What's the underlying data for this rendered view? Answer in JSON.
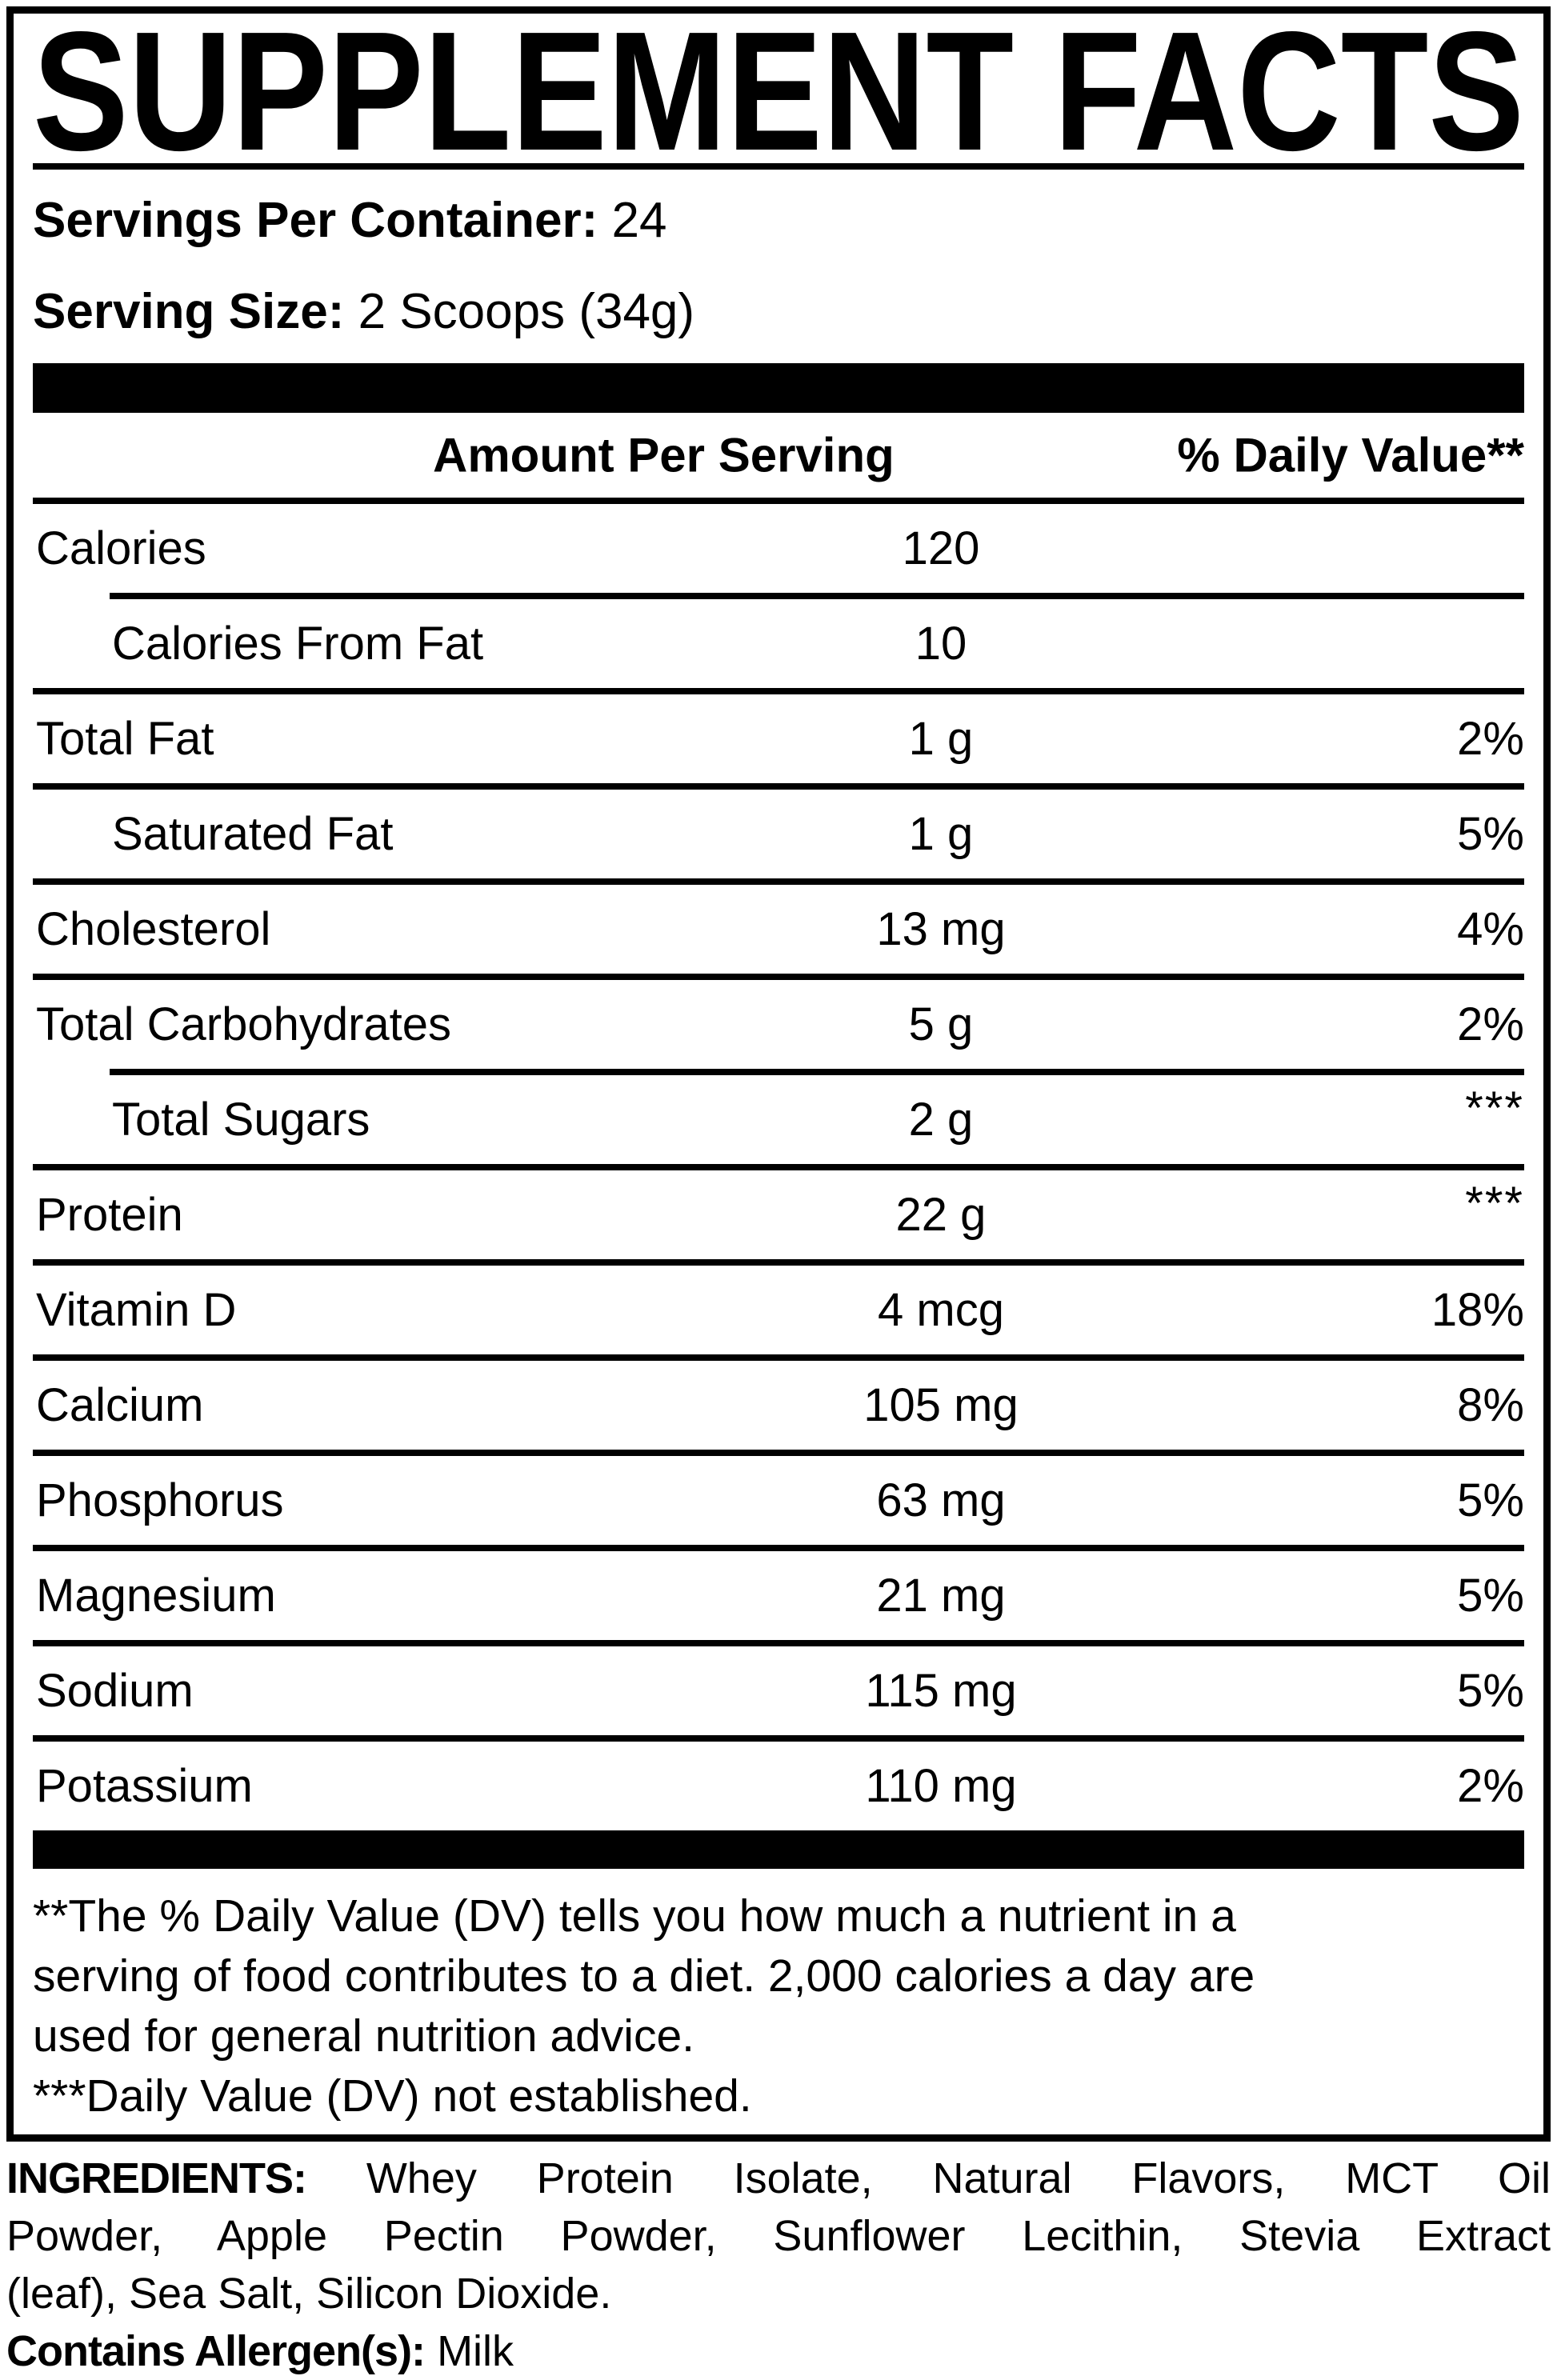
{
  "title": "SUPPLEMENT FACTS",
  "servings": {
    "label": "Servings Per Container:",
    "value": "24"
  },
  "serving_size": {
    "label": "Serving Size:",
    "value": "2 Scoops (34g)"
  },
  "table": {
    "header": {
      "amount": "Amount Per Serving",
      "dv": "% Daily Value**"
    },
    "rows": [
      {
        "name": "Calories",
        "amount": "120",
        "dv": ""
      },
      {
        "name": "Calories From Fat",
        "amount": "10",
        "dv": ""
      },
      {
        "name": "Total Fat",
        "amount": "1 g",
        "dv": "2%"
      },
      {
        "name": "Saturated Fat",
        "amount": "1 g",
        "dv": "5%"
      },
      {
        "name": "Cholesterol",
        "amount": "13 mg",
        "dv": "4%"
      },
      {
        "name": "Total Carbohydrates",
        "amount": "5 g",
        "dv": "2%"
      },
      {
        "name": "Total Sugars",
        "amount": "2 g",
        "dv": "***"
      },
      {
        "name": "Protein",
        "amount": "22 g",
        "dv": "***"
      },
      {
        "name": "Vitamin D",
        "amount": "4 mcg",
        "dv": "18%"
      },
      {
        "name": "Calcium",
        "amount": "105 mg",
        "dv": "8%"
      },
      {
        "name": "Phosphorus",
        "amount": "63 mg",
        "dv": "5%"
      },
      {
        "name": "Magnesium",
        "amount": "21 mg",
        "dv": "5%"
      },
      {
        "name": "Sodium",
        "amount": "115 mg",
        "dv": "5%"
      },
      {
        "name": "Potassium",
        "amount": "110 mg",
        "dv": "2%"
      }
    ]
  },
  "footnotes": {
    "line1": "**The % Daily Value (DV) tells you how much a nutrient in a",
    "line2": "serving of food contributes to a diet. 2,000 calories a day are",
    "line3": "used for general nutrition advice.",
    "line4": "***Daily Value (DV) not established."
  },
  "ingredients": {
    "label": "INGREDIENTS:",
    "line1": "Whey Protein Isolate, Natural Flavors, MCT Oil",
    "line2": "Powder, Apple Pectin Powder, Sunflower Lecithin, Stevia Extract",
    "line3": "(leaf), Sea Salt, Silicon Dioxide.",
    "allergen_label": "Contains Allergen(s):",
    "allergen_value": "Milk"
  },
  "colors": {
    "ink": "#000000",
    "paper": "#ffffff"
  }
}
